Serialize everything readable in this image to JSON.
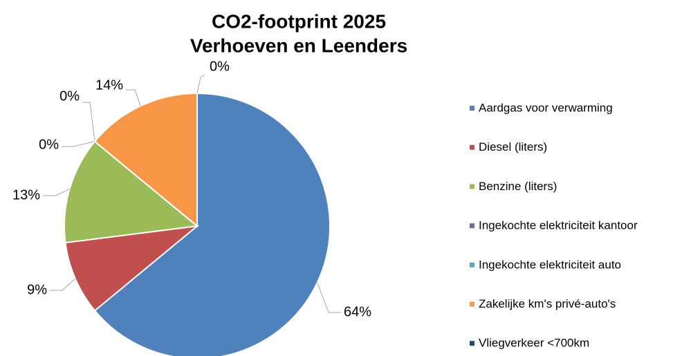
{
  "chart_data": {
    "type": "pie",
    "title": "CO2-footprint 2025",
    "subtitle": "Verhoeven en Leenders",
    "categories": [
      "Aardgas voor verwarming",
      "Diesel (liters)",
      "Benzine (liters)",
      "Ingekochte elektriciteit kantoor",
      "Ingekochte elektriciteit auto",
      "Zakelijke km's privé-auto's",
      "Vliegverkeer <700km"
    ],
    "values": [
      64,
      9,
      13,
      0,
      0,
      14,
      0
    ],
    "value_labels": [
      "64%",
      "9%",
      "13%",
      "0%",
      "0%",
      "14%",
      "0%"
    ],
    "colors": [
      "#4f81bd",
      "#c0504d",
      "#9bbb59",
      "#8064a2",
      "#4bacc6",
      "#f79646",
      "#1f497d"
    ],
    "legend": "right"
  }
}
